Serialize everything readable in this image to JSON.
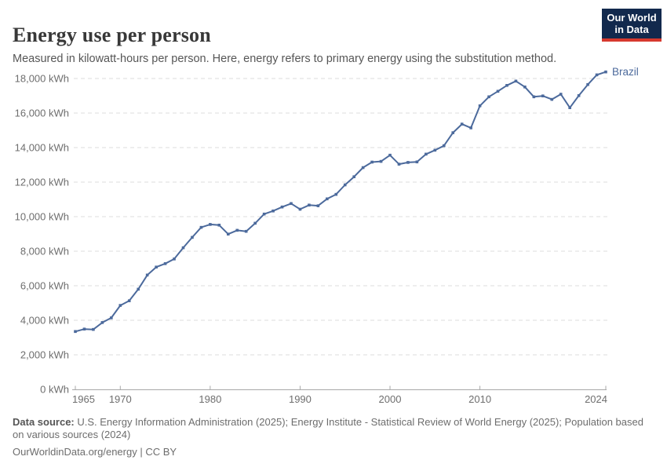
{
  "header": {
    "title": "Energy use per person",
    "subtitle": "Measured in kilowatt-hours per person. Here, energy refers to primary energy using the substitution method.",
    "logo": {
      "line1": "Our World",
      "line2": "in Data"
    }
  },
  "chart_data": {
    "type": "line",
    "title": "Energy use per person",
    "unit": "kWh",
    "xlabel": "",
    "ylabel": "",
    "xlim": [
      1965,
      2024
    ],
    "ylim": [
      0,
      18000
    ],
    "grid": "horizontal-dashed",
    "legend_position": "end-of-line-label",
    "series": [
      {
        "name": "Brazil",
        "x": [
          1965,
          1966,
          1967,
          1968,
          1969,
          1970,
          1971,
          1972,
          1973,
          1974,
          1975,
          1976,
          1977,
          1978,
          1979,
          1980,
          1981,
          1982,
          1983,
          1984,
          1985,
          1986,
          1987,
          1988,
          1989,
          1990,
          1991,
          1992,
          1993,
          1994,
          1995,
          1996,
          1997,
          1998,
          1999,
          2000,
          2001,
          2002,
          2003,
          2004,
          2005,
          2006,
          2007,
          2008,
          2009,
          2010,
          2011,
          2012,
          2013,
          2014,
          2015,
          2016,
          2017,
          2018,
          2019,
          2020,
          2021,
          2022,
          2023,
          2024
        ],
        "values": [
          3350,
          3490,
          3470,
          3870,
          4140,
          4860,
          5130,
          5800,
          6620,
          7080,
          7280,
          7550,
          8200,
          8800,
          9380,
          9550,
          9510,
          8990,
          9210,
          9150,
          9620,
          10150,
          10330,
          10560,
          10760,
          10430,
          10670,
          10630,
          11030,
          11290,
          11840,
          12310,
          12840,
          13160,
          13200,
          13560,
          13040,
          13140,
          13170,
          13620,
          13850,
          14110,
          14860,
          15360,
          15140,
          16420,
          16940,
          17260,
          17600,
          17850,
          17510,
          16940,
          16990,
          16790,
          17090,
          16310,
          17010,
          17650,
          18210,
          18380
        ]
      }
    ],
    "y_ticks": [
      {
        "value": 0,
        "label": "0 kWh"
      },
      {
        "value": 2000,
        "label": "2,000 kWh"
      },
      {
        "value": 4000,
        "label": "4,000 kWh"
      },
      {
        "value": 6000,
        "label": "6,000 kWh"
      },
      {
        "value": 8000,
        "label": "8,000 kWh"
      },
      {
        "value": 10000,
        "label": "10,000 kWh"
      },
      {
        "value": 12000,
        "label": "12,000 kWh"
      },
      {
        "value": 14000,
        "label": "14,000 kWh"
      },
      {
        "value": 16000,
        "label": "16,000 kWh"
      },
      {
        "value": 18000,
        "label": "18,000 kWh"
      }
    ],
    "x_ticks": [
      {
        "year": 1965,
        "label": "1965",
        "anchor": "start"
      },
      {
        "year": 1970,
        "label": "1970",
        "anchor": "middle"
      },
      {
        "year": 1980,
        "label": "1980",
        "anchor": "middle"
      },
      {
        "year": 1990,
        "label": "1990",
        "anchor": "middle"
      },
      {
        "year": 2000,
        "label": "2000",
        "anchor": "middle"
      },
      {
        "year": 2010,
        "label": "2010",
        "anchor": "middle"
      },
      {
        "year": 2024,
        "label": "2024",
        "anchor": "end"
      }
    ],
    "colors": {
      "series": "#4C6A9C",
      "axis_text": "#6e6e6e",
      "gridline": "#dcdcdc",
      "axis_line": "#a8a8a8"
    }
  },
  "footer": {
    "source_label": "Data source:",
    "source_text": " U.S. Energy Information Administration (2025); Energy Institute - Statistical Review of World Energy (2025); Population based on various sources (2024)",
    "url": "OurWorldinData.org/energy",
    "separator": " | ",
    "license": "CC BY"
  }
}
